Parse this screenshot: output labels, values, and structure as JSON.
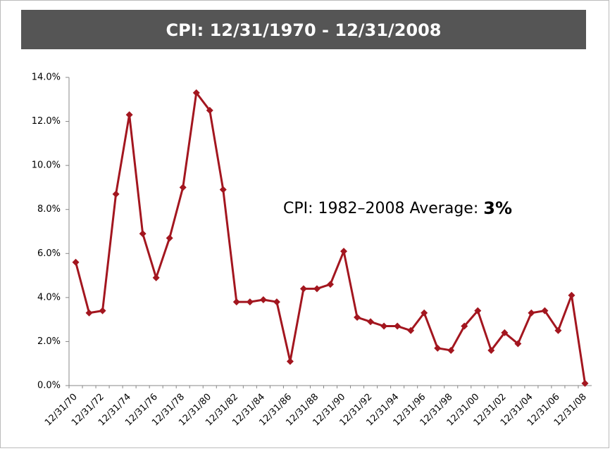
{
  "chart_data": {
    "type": "line",
    "title": "CPI: 12/31/1970 - 12/31/2008",
    "annotation": "CPI: 1982–2008 Average:",
    "annotation_value": "3%",
    "categories": [
      "12/31/70",
      null,
      "12/31/72",
      null,
      "12/31/74",
      null,
      "12/31/76",
      null,
      "12/31/78",
      null,
      "12/31/80",
      null,
      "12/31/82",
      null,
      "12/31/84",
      null,
      "12/31/86",
      null,
      "12/31/88",
      null,
      "12/31/90",
      null,
      "12/31/92",
      null,
      "12/31/94",
      null,
      "12/31/96",
      null,
      "12/31/98",
      null,
      "12/31/00",
      null,
      "12/31/02",
      null,
      "12/31/04",
      null,
      "12/31/06",
      null,
      "12/31/08"
    ],
    "series": [
      {
        "name": "CPI",
        "color": "#a3161f",
        "values": [
          5.6,
          3.3,
          3.4,
          8.7,
          12.3,
          6.9,
          4.9,
          6.7,
          9.0,
          13.3,
          12.5,
          8.9,
          3.8,
          3.8,
          3.9,
          3.8,
          1.1,
          4.4,
          4.4,
          4.6,
          6.1,
          3.1,
          2.9,
          2.7,
          2.7,
          2.5,
          3.3,
          1.7,
          1.6,
          2.7,
          3.4,
          1.6,
          2.4,
          1.9,
          3.3,
          3.4,
          2.5,
          4.1,
          0.1
        ]
      }
    ],
    "ylim": [
      0,
      14
    ],
    "yticks": [
      {
        "value": 0,
        "label": "0.0%"
      },
      {
        "value": 2,
        "label": "2.0%"
      },
      {
        "value": 4,
        "label": "4.0%"
      },
      {
        "value": 6,
        "label": "6.0%"
      },
      {
        "value": 8,
        "label": "8.0%"
      },
      {
        "value": 10,
        "label": "10.0%"
      },
      {
        "value": 12,
        "label": "12.0%"
      },
      {
        "value": 14,
        "label": "14.0%"
      }
    ],
    "grid": false
  }
}
